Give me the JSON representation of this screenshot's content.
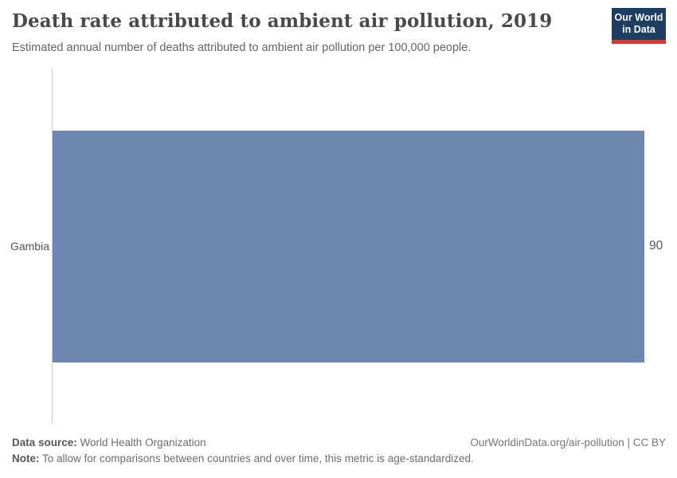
{
  "header": {
    "title": "Death rate attributed to ambient air pollution, 2019",
    "subtitle": "Estimated annual number of deaths attributed to ambient air pollution per 100,000 people.",
    "logo": {
      "line1": "Our World",
      "line2": "in Data",
      "bg_color": "#1d3d63",
      "accent_color": "#d7392f"
    }
  },
  "chart_data": {
    "type": "bar",
    "orientation": "horizontal",
    "title": "Death rate attributed to ambient air pollution, 2019",
    "categories": [
      "Gambia"
    ],
    "values": [
      90
    ],
    "value_labels": [
      "90"
    ],
    "xlabel": "",
    "ylabel": "",
    "xlim": [
      0,
      90
    ],
    "grid": false,
    "legend": false,
    "bar_color": "#6d87b1",
    "axis_color": "#cccccc"
  },
  "footer": {
    "source_label": "Data source:",
    "source_value": " World Health Organization",
    "note_label": "Note:",
    "note_value": " To allow for comparisons between countries and over time, this metric is age-standardized.",
    "credit": "OurWorldinData.org/air-pollution | CC BY"
  }
}
